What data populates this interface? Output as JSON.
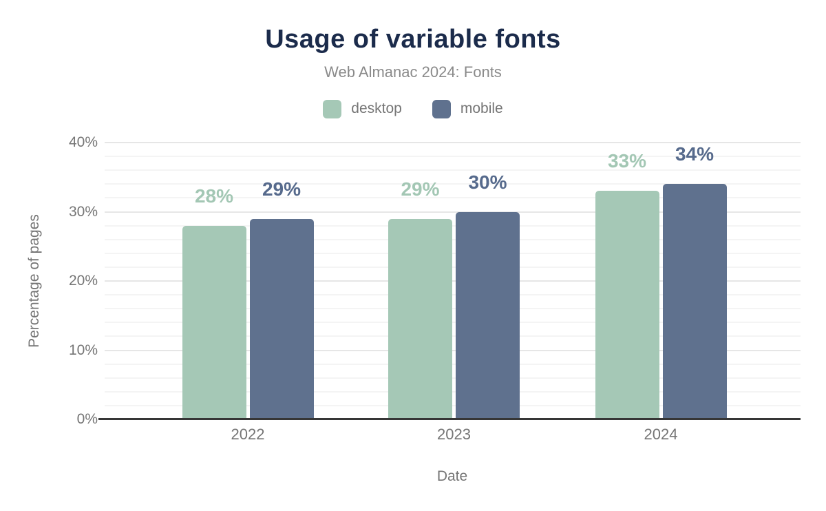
{
  "chart_data": {
    "type": "bar",
    "title": "Usage of variable fonts",
    "subtitle": "Web Almanac 2024: Fonts",
    "xlabel": "Date",
    "ylabel": "Percentage of pages",
    "categories": [
      "2022",
      "2023",
      "2024"
    ],
    "series": [
      {
        "name": "desktop",
        "color": "#a5c8b6",
        "label_color": "#a3c7b4",
        "values": [
          28,
          29,
          33
        ],
        "data_labels": [
          "28%",
          "29%",
          "33%"
        ]
      },
      {
        "name": "mobile",
        "color": "#5f718e",
        "label_color": "#566a8c",
        "values": [
          29,
          30,
          34
        ],
        "data_labels": [
          "29%",
          "30%",
          "34%"
        ]
      }
    ],
    "ylim": [
      0,
      40
    ],
    "yticks": [
      {
        "v": 0,
        "label": "0%"
      },
      {
        "v": 10,
        "label": "10%"
      },
      {
        "v": 20,
        "label": "20%"
      },
      {
        "v": 30,
        "label": "30%"
      },
      {
        "v": 40,
        "label": "40%"
      }
    ],
    "grid": {
      "on": true,
      "minor_step": 2,
      "major_step": 10
    },
    "legend_position": "top"
  },
  "style": {
    "title_color": "#1b2b4b",
    "subtitle_color": "#8a8a8a",
    "axis_text_color": "#757575",
    "grid_minor_color": "#f4f4f4",
    "grid_major_color": "#e6e6e6",
    "baseline_color": "#363636",
    "background_color": "#ffffff"
  }
}
